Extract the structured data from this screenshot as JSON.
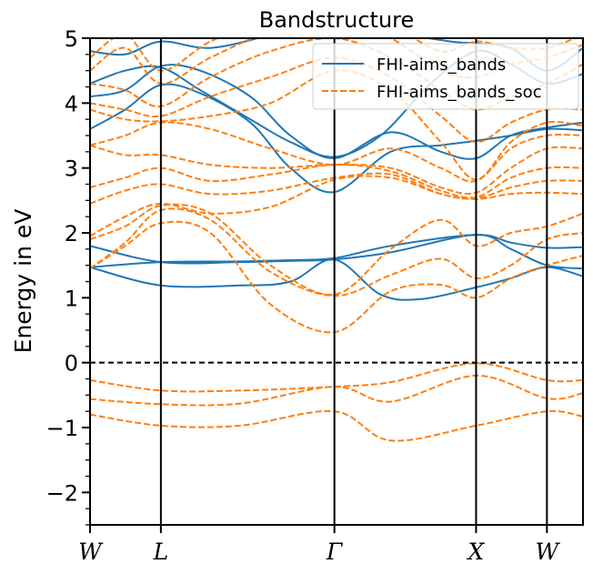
{
  "chart_data": {
    "type": "line",
    "title": "Bandstructure",
    "ylabel": "Energy in eV",
    "xlabel": "",
    "ylim": [
      -2.5,
      5
    ],
    "yticks": [
      -2,
      -1,
      0,
      1,
      2,
      3,
      4,
      5
    ],
    "kpoints": [
      {
        "label": "W",
        "pos": 0
      },
      {
        "label": "L",
        "pos": 0.707
      },
      {
        "label": "Γ",
        "pos": 2.439
      },
      {
        "label": "X",
        "pos": 3.853
      },
      {
        "label": "W",
        "pos": 4.56
      }
    ],
    "xlim": [
      0,
      4.92
    ],
    "fermi_level": 0,
    "grid": false,
    "legend_position": "top-right",
    "colors": {
      "bands": "#1f77b4",
      "bands_soc": "#ff7f0e"
    },
    "series": [
      {
        "name": "FHI-aims_bands",
        "style": "solid",
        "bands": [
          {
            "x": [
              0,
              0.707,
              1.5,
              2.0,
              2.439,
              2.9,
              3.3,
              3.853,
              4.2,
              4.56,
              4.92
            ],
            "y": [
              1.47,
              1.19,
              1.19,
              1.25,
              1.59,
              1.05,
              0.98,
              1.16,
              1.3,
              1.47,
              1.33
            ]
          },
          {
            "x": [
              0,
              0.707,
              1.5,
              2.0,
              2.439,
              3.0,
              3.853,
              4.2,
              4.56,
              4.92
            ],
            "y": [
              1.8,
              1.55,
              1.55,
              1.57,
              1.59,
              1.7,
              1.97,
              1.75,
              1.5,
              1.45
            ]
          },
          {
            "x": [
              0,
              0.707,
              1.5,
              2.0,
              2.439,
              3.0,
              3.853,
              4.2,
              4.56,
              4.92
            ],
            "y": [
              1.47,
              1.55,
              1.56,
              1.58,
              1.61,
              1.8,
              1.97,
              1.85,
              1.77,
              1.78
            ]
          },
          {
            "x": [
              0,
              0.35,
              0.707,
              1.1,
              1.6,
              2.0,
              2.439,
              3.0,
              3.5,
              3.853,
              4.2,
              4.56,
              4.92
            ],
            "y": [
              3.6,
              3.9,
              4.28,
              4.15,
              3.7,
              3.0,
              2.63,
              3.25,
              3.35,
              3.42,
              3.5,
              3.6,
              3.58
            ]
          },
          {
            "x": [
              0,
              0.35,
              0.707,
              1.1,
              1.6,
              2.0,
              2.439,
              3.0,
              3.5,
              3.853,
              4.2,
              4.56,
              4.92
            ],
            "y": [
              4.1,
              4.2,
              4.57,
              4.5,
              4.1,
              3.5,
              3.15,
              3.55,
              3.25,
              3.15,
              3.5,
              3.62,
              3.7
            ]
          },
          {
            "x": [
              0,
              0.35,
              0.707,
              1.1,
              1.6,
              2.0,
              2.439,
              2.9,
              3.4,
              3.853,
              4.2,
              4.56,
              4.92
            ],
            "y": [
              4.3,
              4.5,
              4.55,
              4.2,
              3.75,
              3.4,
              3.17,
              3.5,
              4.3,
              4.8,
              4.6,
              4.3,
              4.45
            ]
          },
          {
            "x": [
              0,
              0.35,
              0.707,
              1.2,
              1.8,
              2.439,
              3.0,
              3.6,
              3.853,
              4.2,
              4.56,
              4.92
            ],
            "y": [
              4.8,
              4.75,
              4.95,
              4.85,
              5.05,
              5.3,
              5.1,
              4.95,
              4.92,
              4.85,
              4.5,
              4.85
            ]
          }
        ]
      },
      {
        "name": "FHI-aims_bands_soc",
        "style": "dashed",
        "bands": [
          {
            "x": [
              0,
              0.707,
              1.5,
              2.439,
              3.0,
              3.853,
              4.56,
              4.92
            ],
            "y": [
              -0.8,
              -0.97,
              -0.97,
              -0.75,
              -1.2,
              -0.97,
              -0.75,
              -0.83
            ]
          },
          {
            "x": [
              0,
              0.707,
              1.5,
              2.439,
              3.0,
              3.853,
              4.56,
              4.92
            ],
            "y": [
              -0.56,
              -0.64,
              -0.63,
              -0.37,
              -0.6,
              -0.2,
              -0.55,
              -0.47
            ]
          },
          {
            "x": [
              0,
              0.707,
              1.5,
              2.439,
              3.0,
              3.853,
              4.56,
              4.92
            ],
            "y": [
              -0.27,
              -0.43,
              -0.43,
              -0.37,
              -0.3,
              -0.01,
              -0.27,
              -0.27
            ]
          },
          {
            "x": [
              0,
              0.35,
              0.707,
              1.2,
              1.8,
              2.439,
              3.0,
              3.5,
              3.853,
              4.2,
              4.56,
              4.92
            ],
            "y": [
              1.45,
              1.8,
              2.15,
              2.0,
              0.9,
              0.47,
              1.1,
              1.2,
              1.0,
              1.3,
              1.5,
              1.65
            ]
          },
          {
            "x": [
              0,
              0.35,
              0.707,
              1.2,
              1.8,
              2.439,
              3.0,
              3.5,
              3.853,
              4.2,
              4.56,
              4.92
            ],
            "y": [
              1.45,
              1.85,
              2.35,
              2.2,
              1.4,
              1.03,
              1.35,
              1.6,
              1.3,
              1.5,
              1.9,
              2.0
            ]
          },
          {
            "x": [
              0,
              0.35,
              0.707,
              1.2,
              1.8,
              2.439,
              3.0,
              3.5,
              3.853,
              4.2,
              4.56,
              4.92
            ],
            "y": [
              1.9,
              2.1,
              2.42,
              2.3,
              1.5,
              1.05,
              1.75,
              2.2,
              1.8,
              2.0,
              2.1,
              2.3
            ]
          },
          {
            "x": [
              0,
              0.35,
              0.707,
              1.2,
              1.8,
              2.439,
              3.0,
              3.5,
              3.853,
              4.2,
              4.56,
              4.92
            ],
            "y": [
              1.95,
              2.25,
              2.45,
              2.3,
              2.4,
              2.82,
              2.85,
              2.6,
              2.52,
              2.6,
              2.62,
              2.6
            ]
          },
          {
            "x": [
              0,
              0.35,
              0.707,
              1.2,
              1.8,
              2.439,
              3.0,
              3.5,
              3.853,
              4.2,
              4.56,
              4.92
            ],
            "y": [
              2.45,
              2.65,
              2.75,
              2.6,
              2.65,
              2.85,
              2.9,
              2.6,
              2.53,
              2.7,
              2.8,
              2.8
            ]
          },
          {
            "x": [
              0,
              0.35,
              0.707,
              1.2,
              1.8,
              2.439,
              3.0,
              3.5,
              3.853,
              4.2,
              4.56,
              4.92
            ],
            "y": [
              2.7,
              2.85,
              3.0,
              2.8,
              2.9,
              3.05,
              2.95,
              2.65,
              2.55,
              2.85,
              3.0,
              3.0
            ]
          },
          {
            "x": [
              0,
              0.35,
              0.707,
              1.2,
              1.8,
              2.439,
              3.0,
              3.5,
              3.853,
              4.2,
              4.56,
              4.92
            ],
            "y": [
              3.35,
              3.2,
              3.2,
              3.05,
              3.0,
              3.05,
              3.0,
              2.7,
              2.62,
              3.0,
              3.3,
              3.3
            ]
          },
          {
            "x": [
              0,
              0.35,
              0.707,
              1.2,
              1.8,
              2.439,
              3.0,
              3.5,
              3.853,
              4.2,
              4.56,
              4.92
            ],
            "y": [
              3.35,
              3.5,
              3.7,
              3.6,
              3.3,
              3.05,
              3.3,
              3.0,
              2.8,
              3.3,
              3.5,
              3.5
            ]
          },
          {
            "x": [
              0,
              0.35,
              0.707,
              1.2,
              1.8,
              2.439,
              3.0,
              3.5,
              3.853,
              4.2,
              4.56,
              4.92
            ],
            "y": [
              3.9,
              3.75,
              3.72,
              3.8,
              4.0,
              4.5,
              4.2,
              3.4,
              2.82,
              3.4,
              3.7,
              3.65
            ]
          },
          {
            "x": [
              0,
              0.35,
              0.707,
              1.2,
              1.8,
              2.439,
              3.0,
              3.5,
              3.853,
              4.2,
              4.56,
              4.92
            ],
            "y": [
              4.0,
              3.9,
              3.8,
              4.1,
              4.4,
              4.7,
              4.4,
              3.8,
              3.4,
              3.7,
              3.9,
              3.9
            ]
          },
          {
            "x": [
              0,
              0.35,
              0.707,
              1.2,
              1.8,
              2.439,
              3.0,
              3.5,
              3.853,
              4.2,
              4.56,
              4.92
            ],
            "y": [
              4.3,
              4.2,
              3.95,
              4.4,
              4.8,
              5.0,
              4.7,
              4.2,
              3.9,
              4.1,
              4.3,
              4.6
            ]
          },
          {
            "x": [
              0,
              0.35,
              0.707,
              1.2,
              1.8,
              2.439,
              3.0,
              3.5,
              3.853,
              4.2,
              4.56,
              4.92
            ],
            "y": [
              4.5,
              4.85,
              4.3,
              4.7,
              5.1,
              5.3,
              5.0,
              4.5,
              4.4,
              4.6,
              4.7,
              4.9
            ]
          },
          {
            "x": [
              0,
              0.35,
              0.707,
              1.2,
              1.8,
              2.439,
              3.0,
              3.5,
              3.853,
              4.2,
              4.56,
              4.92
            ],
            "y": [
              4.7,
              5.05,
              4.5,
              4.95,
              5.3,
              5.5,
              5.2,
              4.8,
              4.95,
              4.85,
              4.85,
              5.05
            ]
          }
        ]
      }
    ]
  }
}
